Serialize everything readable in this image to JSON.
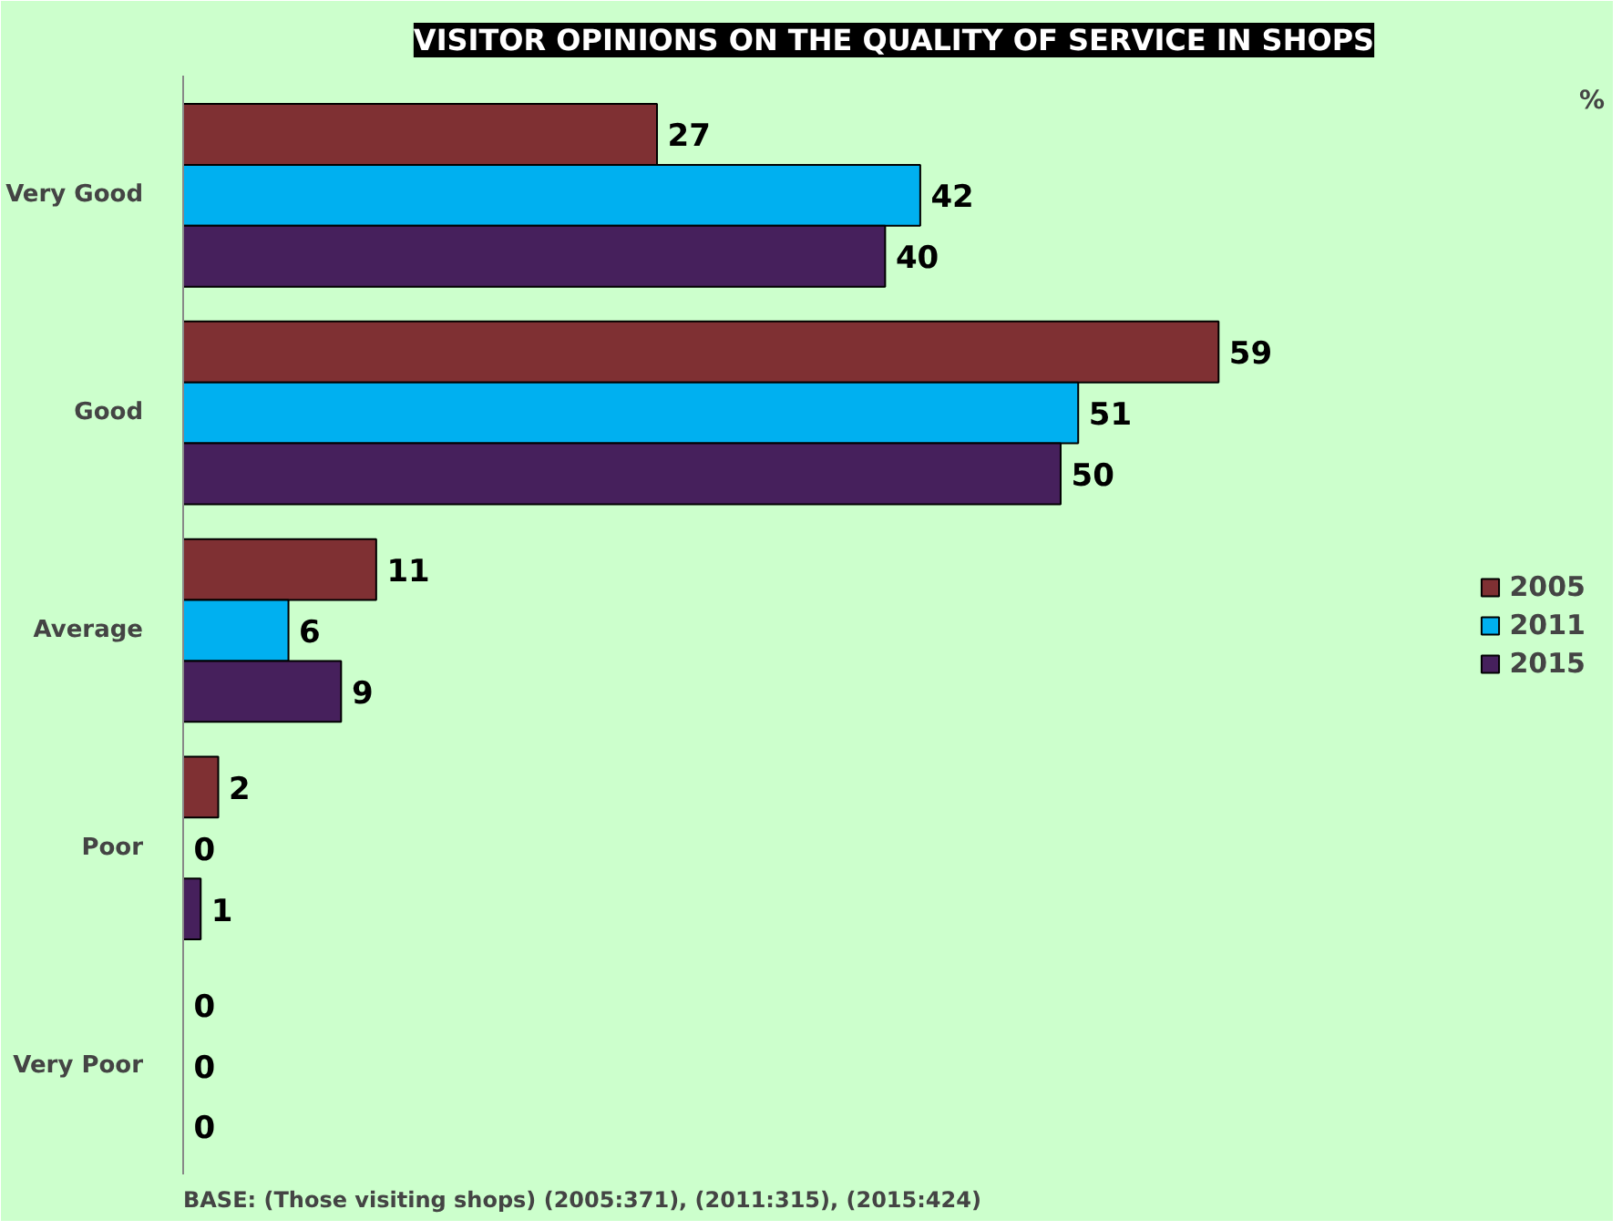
{
  "chart_data": {
    "type": "bar",
    "orientation": "horizontal",
    "title": "VISITOR OPINIONS ON THE QUALITY OF SERVICE IN SHOPS",
    "categories": [
      "Very Good",
      "Good",
      "Average",
      "Poor",
      "Very Poor"
    ],
    "series": [
      {
        "name": "2005",
        "color": "#7f3033",
        "values": [
          27,
          59,
          11,
          2,
          0
        ]
      },
      {
        "name": "2011",
        "color": "#00b0f0",
        "values": [
          42,
          51,
          6,
          0,
          0
        ]
      },
      {
        "name": "2015",
        "color": "#46205c",
        "values": [
          40,
          50,
          9,
          1,
          0
        ]
      }
    ],
    "xlim": [
      0,
      81
    ],
    "data_labels": true,
    "grid": false,
    "legend": "right",
    "annotations": [
      "%",
      "BASE: (Those visiting shops) (2005:371), (2011:315), (2015:424)"
    ]
  }
}
